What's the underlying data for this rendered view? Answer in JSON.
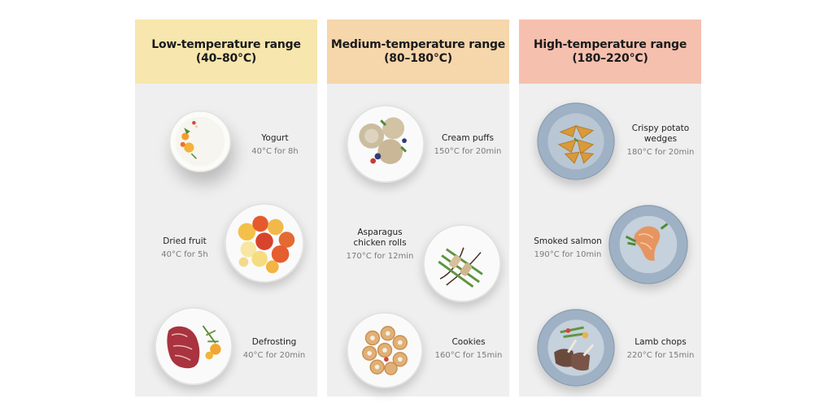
{
  "columns": [
    {
      "title": "Low-temperature range",
      "range": "(40–80°C)",
      "color": "#f7e6ad",
      "items": [
        {
          "name": "Yogurt",
          "temp": "40°C for 8h",
          "icon": "yogurt-bowl-icon"
        },
        {
          "name": "Dried fruit",
          "temp": "40°C for 5h",
          "icon": "dried-fruit-plate-icon"
        },
        {
          "name": "Defrosting",
          "temp": "40°C for 20min",
          "icon": "steak-plate-icon"
        }
      ]
    },
    {
      "title": "Medium-temperature range",
      "range": "(80–180°C)",
      "color": "#f6d6ab",
      "items": [
        {
          "name": "Cream puffs",
          "temp": "150°C for 20min",
          "icon": "cream-puffs-plate-icon"
        },
        {
          "name1": "Asparagus",
          "name2": "chicken rolls",
          "temp": "170°C for 12min",
          "icon": "asparagus-rolls-plate-icon"
        },
        {
          "name": "Cookies",
          "temp": "160°C for 15min",
          "icon": "cookies-plate-icon"
        }
      ]
    },
    {
      "title": "High-temperature range",
      "range": "(180–220°C)",
      "color": "#f6c0ae",
      "items": [
        {
          "name1": "Crispy potato",
          "name2": "wedges",
          "temp": "180°C for 20min",
          "icon": "potato-wedges-plate-icon"
        },
        {
          "name": "Smoked salmon",
          "temp": "190°C for 10min",
          "icon": "salmon-plate-icon"
        },
        {
          "name": "Lamb chops",
          "temp": "220°C for 15min",
          "icon": "lamb-chops-plate-icon"
        }
      ]
    }
  ]
}
